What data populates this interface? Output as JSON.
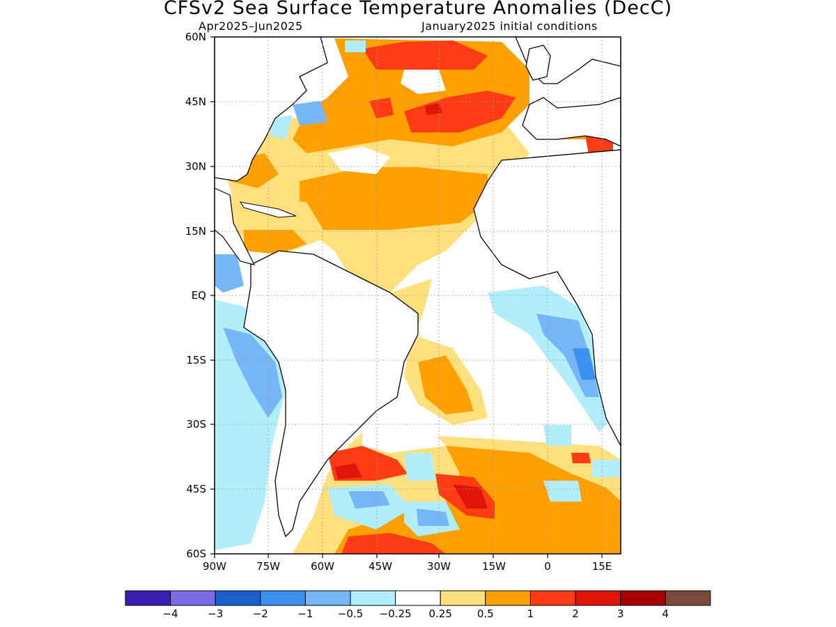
{
  "header": {
    "title": "CFSv2 Sea Surface Temperature Anomalies (DecC)",
    "period": "Apr2025–Jun2025",
    "init": "January2025 initial conditions"
  },
  "axes": {
    "lat_labels": [
      "60N",
      "45N",
      "30N",
      "15N",
      "EQ",
      "15S",
      "30S",
      "45S",
      "60S"
    ],
    "lon_labels": [
      "90W",
      "75W",
      "60W",
      "45W",
      "30W",
      "15W",
      "0",
      "15E"
    ]
  },
  "colorbar": {
    "colors": [
      "#3a1fb0",
      "#7b6be6",
      "#1a5fcd",
      "#3c91ee",
      "#76b6f6",
      "#b2eefa",
      "#ffffff",
      "#ffe07c",
      "#ffa000",
      "#ff3c14",
      "#e1140a",
      "#a80000",
      "#7a4b3c"
    ],
    "labels": [
      "−4",
      "−3",
      "−2",
      "−1",
      "−0.5",
      "−0.25",
      "0.25",
      "0.5",
      "1",
      "2",
      "3",
      "4"
    ]
  }
}
